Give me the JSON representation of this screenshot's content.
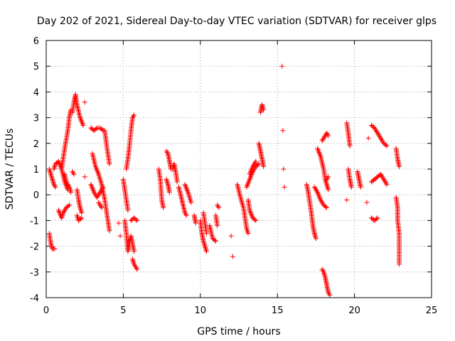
{
  "chart_data": {
    "type": "scatter",
    "title": "Day 202 of 2021, Sidereal Day-to-day VTEC variation (SDTVAR) for receiver glps",
    "xlabel": "GPS time / hours",
    "ylabel": "SDTVAR / TECUs",
    "xlim": [
      0,
      25
    ],
    "ylim": [
      -4,
      6
    ],
    "xticks": [
      0,
      5,
      10,
      15,
      20,
      25
    ],
    "xtick_labels": [
      "0",
      "5",
      "10",
      "15",
      "20",
      "25"
    ],
    "yticks": [
      -4,
      -3,
      -2,
      -1,
      0,
      1,
      2,
      3,
      4,
      5,
      6
    ],
    "ytick_labels": [
      "-4",
      "-3",
      "-2",
      "-1",
      "0",
      "1",
      "2",
      "3",
      "4",
      "5",
      "6"
    ],
    "grid": true,
    "marker": "+",
    "marker_color": "#ff0000",
    "series": [
      {
        "name": "SDTVAR",
        "segments": [
          [
            [
              0.2,
              1.0
            ],
            [
              0.3,
              0.8
            ],
            [
              0.4,
              0.6
            ],
            [
              0.5,
              0.4
            ],
            [
              0.6,
              0.3
            ]
          ],
          [
            [
              0.2,
              -1.5
            ],
            [
              0.3,
              -1.9
            ],
            [
              0.4,
              -2.1
            ],
            [
              0.55,
              -2.1
            ]
          ],
          [
            [
              0.5,
              1.0
            ],
            [
              0.6,
              1.2
            ],
            [
              0.8,
              1.3
            ],
            [
              1.0,
              1.0
            ],
            [
              1.2,
              0.5
            ],
            [
              1.4,
              0.2
            ]
          ],
          [
            [
              0.8,
              -0.6
            ],
            [
              1.0,
              -0.9
            ],
            [
              1.1,
              -0.7
            ],
            [
              1.3,
              -0.5
            ],
            [
              1.5,
              -0.4
            ]
          ],
          [
            [
              1.0,
              1.0
            ],
            [
              1.2,
              1.8
            ],
            [
              1.4,
              2.5
            ],
            [
              1.5,
              3.0
            ],
            [
              1.6,
              3.3
            ]
          ],
          [
            [
              1.2,
              0.8
            ],
            [
              1.3,
              0.5
            ],
            [
              1.5,
              0.3
            ],
            [
              1.6,
              0.1
            ]
          ],
          [
            [
              1.7,
              3.2
            ],
            [
              1.8,
              3.6
            ],
            [
              1.9,
              3.9
            ],
            [
              2.0,
              3.5
            ],
            [
              2.2,
              3.0
            ],
            [
              2.4,
              2.7
            ]
          ],
          [
            [
              1.7,
              0.9
            ],
            [
              1.8,
              0.8
            ]
          ],
          [
            [
              2.0,
              0.2
            ],
            [
              2.1,
              -0.2
            ],
            [
              2.2,
              -0.5
            ],
            [
              2.3,
              -0.7
            ]
          ],
          [
            [
              2.0,
              -0.8
            ],
            [
              2.1,
              -1.0
            ],
            [
              2.3,
              -0.9
            ]
          ],
          [
            [
              2.5,
              3.6
            ]
          ],
          [
            [
              2.5,
              0.7
            ]
          ],
          [
            [
              2.9,
              2.6
            ],
            [
              3.1,
              2.5
            ],
            [
              3.3,
              2.6
            ],
            [
              3.5,
              2.6
            ],
            [
              3.7,
              2.5
            ]
          ],
          [
            [
              3.8,
              2.5
            ],
            [
              3.9,
              2.0
            ],
            [
              4.0,
              1.6
            ],
            [
              4.1,
              1.2
            ]
          ],
          [
            [
              3.0,
              1.6
            ],
            [
              3.2,
              1.1
            ],
            [
              3.4,
              0.8
            ],
            [
              3.6,
              0.4
            ],
            [
              3.8,
              -0.2
            ],
            [
              3.9,
              -0.6
            ],
            [
              4.0,
              -1.0
            ],
            [
              4.1,
              -1.4
            ]
          ],
          [
            [
              2.9,
              0.4
            ],
            [
              3.1,
              0.1
            ],
            [
              3.3,
              -0.1
            ],
            [
              3.5,
              0.1
            ],
            [
              3.7,
              0.3
            ]
          ],
          [
            [
              3.4,
              -0.3
            ],
            [
              3.6,
              -0.5
            ]
          ],
          [
            [
              4.7,
              -1.1
            ]
          ],
          [
            [
              4.8,
              -1.6
            ]
          ],
          [
            [
              5.0,
              0.6
            ],
            [
              5.1,
              0.2
            ],
            [
              5.2,
              -0.2
            ],
            [
              5.3,
              -0.6
            ]
          ],
          [
            [
              5.1,
              -1.0
            ],
            [
              5.2,
              -1.5
            ],
            [
              5.3,
              -2.2
            ],
            [
              5.5,
              -1.6
            ],
            [
              5.7,
              -2.2
            ]
          ],
          [
            [
              5.2,
              1.0
            ],
            [
              5.3,
              1.4
            ],
            [
              5.4,
              1.9
            ],
            [
              5.5,
              2.5
            ],
            [
              5.6,
              3.0
            ],
            [
              5.7,
              3.1
            ]
          ],
          [
            [
              5.5,
              -1.0
            ],
            [
              5.7,
              -0.9
            ],
            [
              5.9,
              -1.0
            ]
          ],
          [
            [
              5.6,
              -2.5
            ],
            [
              5.7,
              -2.7
            ],
            [
              5.9,
              -2.9
            ]
          ],
          [
            [
              7.3,
              1.0
            ],
            [
              7.4,
              0.6
            ],
            [
              7.5,
              -0.2
            ],
            [
              7.6,
              -0.5
            ]
          ],
          [
            [
              7.8,
              1.7
            ],
            [
              7.9,
              1.6
            ],
            [
              8.0,
              1.3
            ],
            [
              8.1,
              1.0
            ]
          ],
          [
            [
              7.8,
              0.6
            ],
            [
              7.9,
              0.4
            ],
            [
              8.0,
              0.1
            ]
          ],
          [
            [
              8.2,
              1.0
            ],
            [
              8.3,
              1.2
            ],
            [
              8.4,
              0.9
            ],
            [
              8.5,
              0.5
            ]
          ],
          [
            [
              8.6,
              0.3
            ],
            [
              8.8,
              -0.2
            ],
            [
              9.0,
              -0.7
            ],
            [
              9.1,
              -0.8
            ]
          ],
          [
            [
              9.0,
              0.4
            ],
            [
              9.2,
              0.1
            ],
            [
              9.4,
              -0.3
            ]
          ],
          [
            [
              9.6,
              -0.8
            ],
            [
              9.7,
              -1.1
            ]
          ],
          [
            [
              10.0,
              -1.0
            ],
            [
              10.1,
              -1.5
            ],
            [
              10.2,
              -1.8
            ],
            [
              10.3,
              -2.0
            ],
            [
              10.4,
              -2.2
            ]
          ],
          [
            [
              10.2,
              -0.7
            ],
            [
              10.3,
              -1.1
            ],
            [
              10.4,
              -1.5
            ]
          ],
          [
            [
              10.6,
              -1.2
            ],
            [
              10.8,
              -1.7
            ],
            [
              11.0,
              -1.8
            ]
          ],
          [
            [
              11.0,
              -0.8
            ],
            [
              11.1,
              -1.2
            ]
          ],
          [
            [
              11.1,
              -0.4
            ],
            [
              11.2,
              -0.5
            ]
          ],
          [
            [
              12.0,
              -1.6
            ]
          ],
          [
            [
              12.1,
              -2.4
            ]
          ],
          [
            [
              12.4,
              0.4
            ],
            [
              12.6,
              -0.1
            ],
            [
              12.8,
              -0.5
            ],
            [
              12.9,
              -0.9
            ],
            [
              13.0,
              -1.3
            ],
            [
              13.1,
              -1.5
            ]
          ],
          [
            [
              13.0,
              0.3
            ],
            [
              13.2,
              0.6
            ],
            [
              13.4,
              0.9
            ],
            [
              13.6,
              1.1
            ],
            [
              13.8,
              1.2
            ]
          ],
          [
            [
              13.1,
              -0.2
            ],
            [
              13.2,
              -0.6
            ],
            [
              13.4,
              -0.9
            ],
            [
              13.6,
              -1.0
            ]
          ],
          [
            [
              13.2,
              0.8
            ],
            [
              13.4,
              1.1
            ],
            [
              13.6,
              1.3
            ]
          ],
          [
            [
              13.9,
              3.2
            ],
            [
              14.0,
              3.5
            ],
            [
              14.1,
              3.3
            ]
          ],
          [
            [
              13.8,
              2.0
            ],
            [
              13.9,
              1.7
            ],
            [
              14.0,
              1.4
            ],
            [
              14.1,
              1.1
            ]
          ],
          [
            [
              15.3,
              5.0
            ]
          ],
          [
            [
              15.35,
              2.5
            ]
          ],
          [
            [
              15.4,
              1.0
            ]
          ],
          [
            [
              15.45,
              0.3
            ]
          ],
          [
            [
              16.9,
              0.4
            ],
            [
              17.0,
              0.1
            ],
            [
              17.1,
              -0.3
            ],
            [
              17.2,
              -0.7
            ],
            [
              17.3,
              -1.2
            ],
            [
              17.4,
              -1.5
            ],
            [
              17.5,
              -1.7
            ]
          ],
          [
            [
              17.4,
              0.3
            ],
            [
              17.6,
              0.1
            ],
            [
              17.8,
              -0.2
            ],
            [
              18.0,
              -0.4
            ],
            [
              18.2,
              -0.5
            ]
          ],
          [
            [
              17.6,
              1.8
            ],
            [
              17.8,
              1.5
            ],
            [
              18.0,
              1.0
            ],
            [
              18.1,
              0.6
            ],
            [
              18.2,
              0.4
            ],
            [
              18.3,
              0.2
            ]
          ],
          [
            [
              17.9,
              2.1
            ],
            [
              18.0,
              2.2
            ],
            [
              18.1,
              2.3
            ],
            [
              18.2,
              2.4
            ],
            [
              18.3,
              2.3
            ]
          ],
          [
            [
              17.9,
              -2.9
            ],
            [
              18.0,
              -3.0
            ],
            [
              18.1,
              -3.2
            ],
            [
              18.2,
              -3.5
            ],
            [
              18.3,
              -3.8
            ],
            [
              18.4,
              -3.9
            ]
          ],
          [
            [
              18.2,
              0.6
            ],
            [
              18.3,
              0.7
            ]
          ],
          [
            [
              19.5,
              2.8
            ],
            [
              19.6,
              2.4
            ],
            [
              19.7,
              1.9
            ]
          ],
          [
            [
              19.6,
              1.0
            ],
            [
              19.7,
              0.6
            ],
            [
              19.8,
              0.3
            ]
          ],
          [
            [
              19.5,
              -0.2
            ]
          ],
          [
            [
              20.2,
              0.9
            ],
            [
              20.3,
              0.6
            ],
            [
              20.4,
              0.3
            ]
          ],
          [
            [
              20.8,
              -0.3
            ]
          ],
          [
            [
              20.9,
              2.2
            ]
          ],
          [
            [
              21.1,
              2.7
            ],
            [
              21.3,
              2.6
            ],
            [
              21.5,
              2.4
            ],
            [
              21.7,
              2.2
            ],
            [
              21.9,
              2.0
            ],
            [
              22.1,
              1.9
            ]
          ],
          [
            [
              21.1,
              0.5
            ],
            [
              21.3,
              0.6
            ],
            [
              21.5,
              0.7
            ],
            [
              21.7,
              0.8
            ],
            [
              21.9,
              0.6
            ],
            [
              22.1,
              0.4
            ]
          ],
          [
            [
              21.1,
              -0.9
            ],
            [
              21.3,
              -1.0
            ],
            [
              21.5,
              -0.9
            ]
          ],
          [
            [
              22.7,
              1.8
            ],
            [
              22.8,
              1.4
            ],
            [
              22.9,
              1.1
            ]
          ],
          [
            [
              22.7,
              -0.1
            ],
            [
              22.8,
              -0.5
            ],
            [
              22.8,
              -1.0
            ],
            [
              22.9,
              -1.5
            ],
            [
              22.9,
              -1.9
            ],
            [
              22.9,
              -2.3
            ],
            [
              22.9,
              -2.7
            ]
          ]
        ]
      }
    ]
  }
}
